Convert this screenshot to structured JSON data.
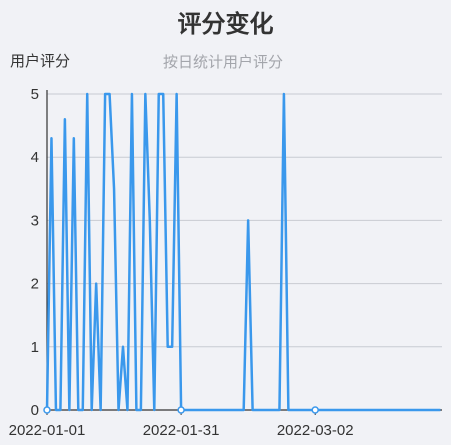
{
  "chart_data": {
    "type": "line",
    "title": "评分变化",
    "subtitle": "按日统计用户评分",
    "ylabel": "用户评分",
    "xlabel": "",
    "ylim": [
      0,
      5
    ],
    "yticks": [
      "0",
      "1",
      "2",
      "3",
      "4",
      "5"
    ],
    "xtick_labels": [
      "2022-01-01",
      "2022-01-31",
      "2022-03-02"
    ],
    "grid": true,
    "color": "#3a98ec",
    "x": [
      "2022-01-01",
      "2022-01-02",
      "2022-01-03",
      "2022-01-04",
      "2022-01-05",
      "2022-01-06",
      "2022-01-07",
      "2022-01-08",
      "2022-01-09",
      "2022-01-10",
      "2022-01-11",
      "2022-01-12",
      "2022-01-13",
      "2022-01-14",
      "2022-01-15",
      "2022-01-16",
      "2022-01-17",
      "2022-01-18",
      "2022-01-19",
      "2022-01-20",
      "2022-01-21",
      "2022-01-22",
      "2022-01-23",
      "2022-01-24",
      "2022-01-25",
      "2022-01-26",
      "2022-01-27",
      "2022-01-28",
      "2022-01-29",
      "2022-01-30",
      "2022-01-31",
      "2022-02-01",
      "2022-02-02",
      "2022-02-03",
      "2022-02-04",
      "2022-02-05",
      "2022-02-06",
      "2022-02-07",
      "2022-02-08",
      "2022-02-09",
      "2022-02-10",
      "2022-02-11",
      "2022-02-12",
      "2022-02-13",
      "2022-02-14",
      "2022-02-15",
      "2022-02-16",
      "2022-02-17",
      "2022-02-18",
      "2022-02-19",
      "2022-02-20",
      "2022-02-21",
      "2022-02-22",
      "2022-02-23",
      "2022-02-24",
      "2022-02-25",
      "2022-02-26",
      "2022-02-27",
      "2022-02-28",
      "2022-03-01",
      "2022-03-02",
      "2022-03-03",
      "2022-03-04",
      "2022-03-05",
      "2022-03-06",
      "2022-03-07",
      "2022-03-08",
      "2022-03-09",
      "2022-03-10",
      "2022-03-11",
      "2022-03-12",
      "2022-03-13",
      "2022-03-14",
      "2022-03-15",
      "2022-03-16",
      "2022-03-17",
      "2022-03-18",
      "2022-03-19",
      "2022-03-20",
      "2022-03-21",
      "2022-03-22",
      "2022-03-23",
      "2022-03-24",
      "2022-03-25",
      "2022-03-26",
      "2022-03-27",
      "2022-03-28",
      "2022-03-29",
      "2022-03-30"
    ],
    "values": [
      0,
      4.3,
      0,
      0,
      4.6,
      0,
      4.3,
      0,
      0,
      5,
      0,
      2,
      0,
      5,
      5,
      3.5,
      0,
      1,
      0,
      5,
      0,
      0,
      5,
      3,
      0,
      5,
      5,
      1,
      1,
      5,
      0,
      0,
      0,
      0,
      0,
      0,
      0,
      0,
      0,
      0,
      0,
      0,
      0,
      0,
      0,
      3,
      0,
      0,
      0,
      0,
      0,
      0,
      0,
      5,
      0,
      0,
      0,
      0,
      0,
      0,
      0,
      0,
      0,
      0,
      0,
      0,
      0,
      0,
      0,
      0,
      0,
      0,
      0,
      0,
      0,
      0,
      0,
      0,
      0,
      0,
      0,
      0,
      0,
      0,
      0,
      0,
      0,
      0,
      0
    ],
    "markers": [
      "2022-01-01",
      "2022-01-31",
      "2022-03-02"
    ]
  }
}
